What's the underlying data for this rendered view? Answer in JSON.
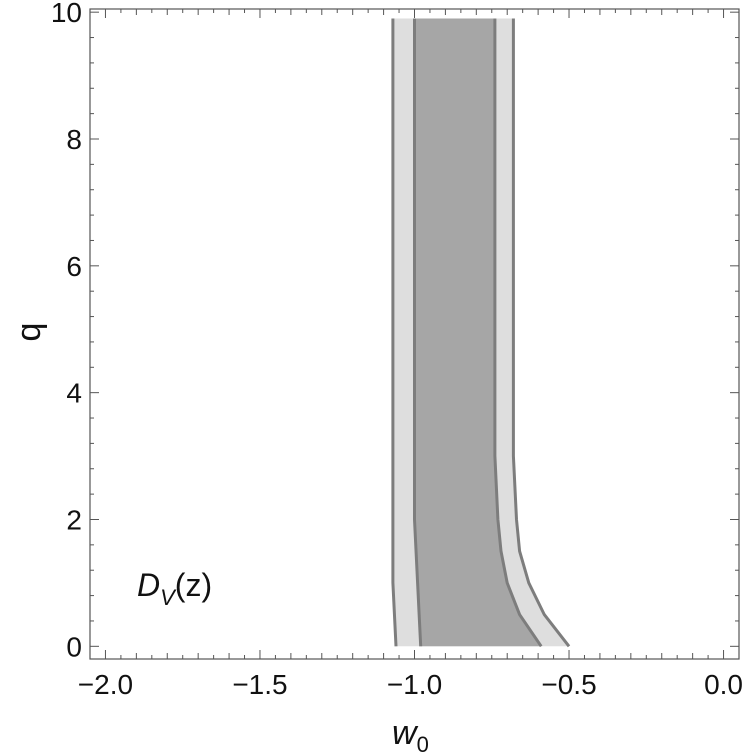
{
  "chart_data": {
    "type": "area",
    "xlim": [
      -2.05,
      0.05
    ],
    "ylim": [
      -0.2,
      10.05
    ],
    "xticks": [
      "-2.0",
      "-1.5",
      "-1.0",
      "-0.5",
      "0.0"
    ],
    "xtick_values": [
      -2.0,
      -1.5,
      -1.0,
      -0.5,
      0.0
    ],
    "yticks": [
      "0",
      "2",
      "4",
      "6",
      "8",
      "10"
    ],
    "ytick_values": [
      0,
      2,
      4,
      6,
      8,
      10
    ],
    "xlabel": {
      "base": "w",
      "sub": "0"
    },
    "ylabel": "q",
    "annotation": {
      "base": "D",
      "sub": "V",
      "rest": "(z)"
    },
    "grid": false,
    "colors": {
      "outer_fill": "#dedede",
      "inner_fill": "#a6a6a6",
      "contour_line": "#7d7d7d",
      "frame": "#555555"
    },
    "series": [
      {
        "level": "outer",
        "left": [
          [
            -1.06,
            0.0
          ],
          [
            -1.07,
            1.0
          ],
          [
            -1.07,
            2.0
          ],
          [
            -1.07,
            4.0
          ],
          [
            -1.07,
            6.0
          ],
          [
            -1.07,
            8.0
          ],
          [
            -1.07,
            9.9
          ]
        ],
        "right": [
          [
            -0.5,
            0.0
          ],
          [
            -0.58,
            0.5
          ],
          [
            -0.63,
            1.0
          ],
          [
            -0.66,
            1.5
          ],
          [
            -0.67,
            2.0
          ],
          [
            -0.68,
            3.0
          ],
          [
            -0.68,
            5.0
          ],
          [
            -0.68,
            9.9
          ]
        ]
      },
      {
        "level": "inner",
        "left": [
          [
            -0.98,
            0.0
          ],
          [
            -0.99,
            1.0
          ],
          [
            -1.0,
            2.0
          ],
          [
            -1.0,
            4.0
          ],
          [
            -1.0,
            6.0
          ],
          [
            -1.0,
            8.0
          ],
          [
            -1.0,
            9.9
          ]
        ],
        "right": [
          [
            -0.59,
            0.0
          ],
          [
            -0.66,
            0.5
          ],
          [
            -0.7,
            1.0
          ],
          [
            -0.72,
            1.5
          ],
          [
            -0.73,
            2.0
          ],
          [
            -0.74,
            3.0
          ],
          [
            -0.74,
            5.0
          ],
          [
            -0.74,
            9.9
          ]
        ]
      }
    ]
  }
}
